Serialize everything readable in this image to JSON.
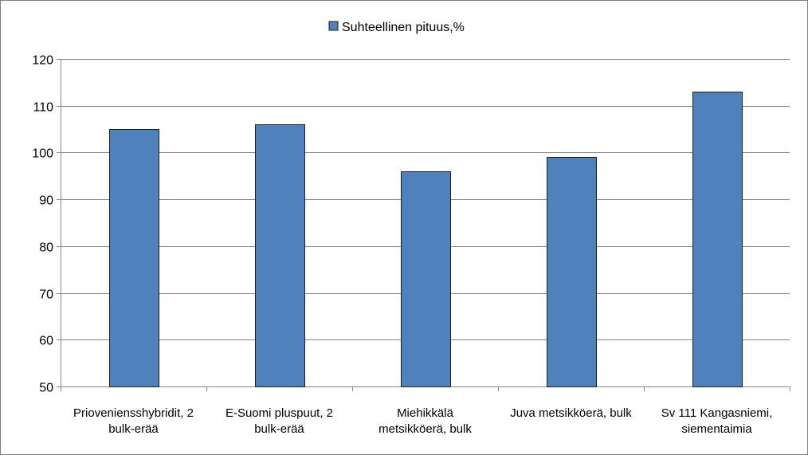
{
  "chart_data": {
    "type": "bar",
    "categories": [
      [
        "Prioveniensshybridit, 2",
        "bulk-erää"
      ],
      [
        "E-Suomi pluspuut, 2",
        "bulk-erää"
      ],
      [
        "Miehikkälä",
        "metsikköerä, bulk"
      ],
      [
        "Juva metsikköerä, bulk"
      ],
      [
        "Sv 111 Kangasniemi,",
        "siementaimia"
      ]
    ],
    "series": [
      {
        "name": "Suhteellinen pituus,%",
        "color": "#4f81bd",
        "values": [
          105,
          106,
          96,
          99,
          113
        ]
      }
    ],
    "y_ticks": [
      "50",
      "60",
      "70",
      "80",
      "90",
      "100",
      "110",
      "120"
    ],
    "ylim": [
      50,
      120
    ],
    "ytick_step": 10,
    "grid": true,
    "legend_position": "top-center",
    "title": "",
    "xlabel": "",
    "ylabel": ""
  }
}
